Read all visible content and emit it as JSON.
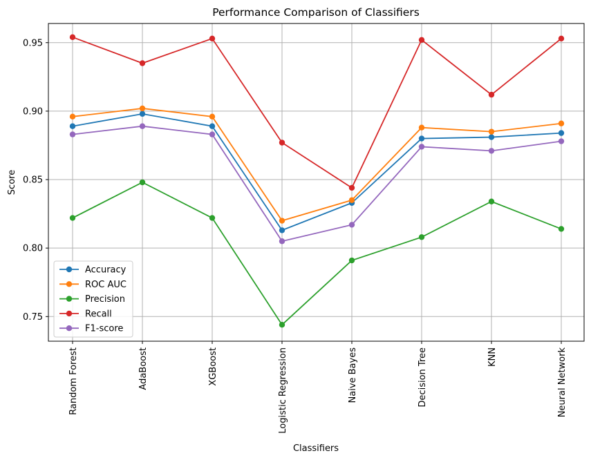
{
  "chart_data": {
    "type": "line",
    "title": "Performance Comparison of Classifiers",
    "xlabel": "Classifiers",
    "ylabel": "Score",
    "categories": [
      "Random Forest",
      "AdaBoost",
      "XGBoost",
      "Logistic Regression",
      "Naive Bayes",
      "Decision Tree",
      "KNN",
      "Neural Network"
    ],
    "ylim": [
      0.732,
      0.964
    ],
    "yticks": [
      0.75,
      0.8,
      0.85,
      0.9,
      0.95
    ],
    "ytick_labels": [
      "0.75",
      "0.80",
      "0.85",
      "0.90",
      "0.95"
    ],
    "grid": true,
    "legend_position": "lower-left",
    "series": [
      {
        "name": "Accuracy",
        "color": "#1f77b4",
        "values": [
          0.889,
          0.898,
          0.889,
          0.813,
          0.833,
          0.88,
          0.881,
          0.884
        ]
      },
      {
        "name": "ROC AUC",
        "color": "#ff7f0e",
        "values": [
          0.896,
          0.902,
          0.896,
          0.82,
          0.835,
          0.888,
          0.885,
          0.891
        ]
      },
      {
        "name": "Precision",
        "color": "#2ca02c",
        "values": [
          0.822,
          0.848,
          0.822,
          0.744,
          0.791,
          0.808,
          0.834,
          0.814
        ]
      },
      {
        "name": "Recall",
        "color": "#d62728",
        "values": [
          0.954,
          0.935,
          0.953,
          0.877,
          0.844,
          0.952,
          0.912,
          0.953
        ]
      },
      {
        "name": "F1-score",
        "color": "#9467bd",
        "values": [
          0.883,
          0.889,
          0.883,
          0.805,
          0.817,
          0.874,
          0.871,
          0.878
        ]
      }
    ]
  }
}
